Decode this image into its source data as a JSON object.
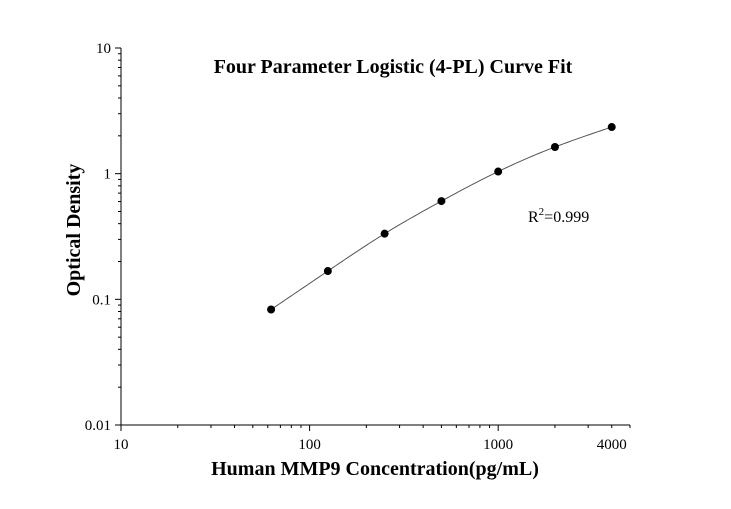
{
  "chart_data": {
    "type": "scatter",
    "title": "Four Parameter Logistic (4-PL) Curve Fit",
    "xlabel": "Human MMP9 Concentration(pg/mL)",
    "ylabel": "Optical Density",
    "x_scale": "log",
    "y_scale": "log",
    "xlim": [
      10,
      5000
    ],
    "ylim": [
      0.01,
      10
    ],
    "x_ticks": [
      {
        "value": 10,
        "label": "10"
      },
      {
        "value": 100,
        "label": "100"
      },
      {
        "value": 1000,
        "label": "1000"
      },
      {
        "value": 4000,
        "label": "4000"
      }
    ],
    "y_ticks": [
      {
        "value": 0.01,
        "label": "0.01"
      },
      {
        "value": 0.1,
        "label": "0.1"
      },
      {
        "value": 1,
        "label": "1"
      },
      {
        "value": 10,
        "label": "10"
      }
    ],
    "series": [
      {
        "x": [
          62.5,
          125,
          250,
          500,
          1000,
          2000,
          4000
        ],
        "y": [
          0.083,
          0.168,
          0.333,
          0.605,
          1.04,
          1.63,
          2.35
        ]
      }
    ],
    "annotation": {
      "base": "R",
      "superscript": "2",
      "text": "=0.999"
    },
    "grid": false,
    "legend": "none"
  }
}
